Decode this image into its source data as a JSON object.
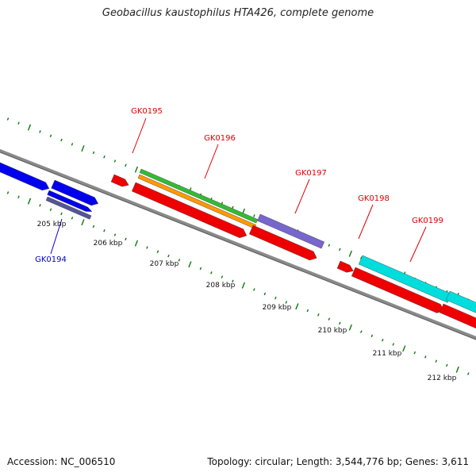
{
  "title": "Geobacillus kaustophilus HTA426, complete genome",
  "footer": {
    "accession": "Accession: NC_006510",
    "summary": "Topology: circular; Length: 3,544,776 bp; Genes: 3,611"
  },
  "kbp_labels": [
    "205 kbp",
    "206 kbp",
    "207 kbp",
    "208 kbp",
    "209 kbp",
    "210 kbp",
    "211 kbp",
    "212 kbp"
  ],
  "gene_labels": [
    {
      "name": "GK0194",
      "strand": "minus",
      "color": "#0000cc"
    },
    {
      "name": "GK0195",
      "strand": "plus",
      "color": "#dd0000"
    },
    {
      "name": "GK0196",
      "strand": "plus",
      "color": "#dd0000"
    },
    {
      "name": "GK0197",
      "strand": "plus",
      "color": "#dd0000"
    },
    {
      "name": "GK0198",
      "strand": "plus",
      "color": "#dd0000"
    },
    {
      "name": "GK0199",
      "strand": "plus",
      "color": "#dd0000"
    }
  ],
  "colors": {
    "backbone": "#8a8a8a",
    "ticks": "#0a7a0a",
    "cds_red": "#ee0000",
    "minus_blue": "#0000ee",
    "slate": "#555599",
    "green": "#33bb33",
    "orange": "#ff9900",
    "purple": "#7766cc",
    "cyan": "#00dddd"
  }
}
